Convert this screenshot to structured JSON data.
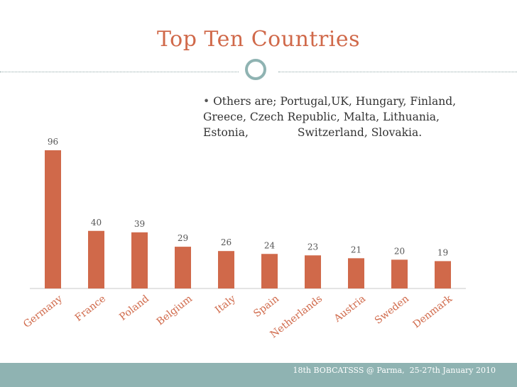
{
  "slide": {
    "title": "Top Ten Countries",
    "note_bullet": "•",
    "note_line1": " Others are; Portugal,UK, Hungary, Finland,",
    "note_line2": "Greece, Czech Republic, Malta, Lithuania,",
    "note_line3": "Estonia,              Switzerland, Slovakia.",
    "footer": "18th BOBCATSSS @ Parma,  25-27th January 2010"
  },
  "colors": {
    "bar": "#d0694a",
    "accent": "#8fb3b2",
    "title": "#d0694a"
  },
  "chart_data": {
    "type": "bar",
    "title": "",
    "categories": [
      "Germany",
      "France",
      "Poland",
      "Belgium",
      "Italy",
      "Spain",
      "Netherlands",
      "Austria",
      "Sweden",
      "Denmark"
    ],
    "values": [
      96,
      40,
      39,
      29,
      26,
      24,
      23,
      21,
      20,
      19
    ],
    "xlabel": "",
    "ylabel": "",
    "ylim": [
      0,
      100
    ],
    "grid": false,
    "data_labels": true
  }
}
